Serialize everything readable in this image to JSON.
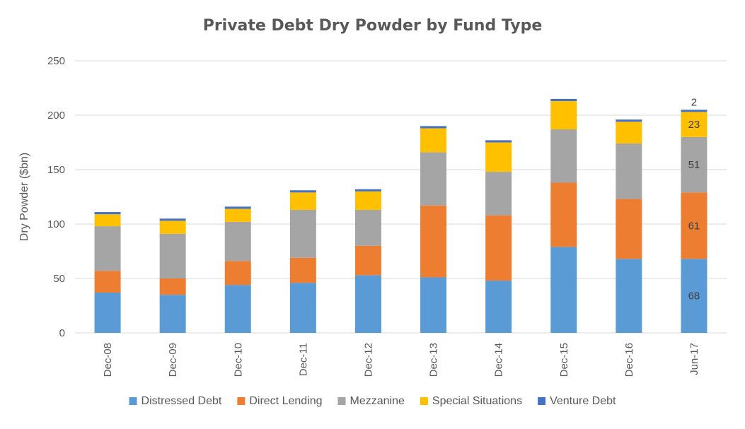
{
  "chart_data": {
    "type": "bar",
    "stacked": true,
    "title": "Private Debt Dry Powder by Fund Type",
    "xlabel": "",
    "ylabel": "Dry Powder ($bn)",
    "ylim": [
      0,
      250
    ],
    "yticks": [
      0,
      50,
      100,
      150,
      200,
      250
    ],
    "grid": true,
    "legend_position": "bottom",
    "categories": [
      "Dec-08",
      "Dec-09",
      "Dec-10",
      "Dec-11",
      "Dec-12",
      "Dec-13",
      "Dec-14",
      "Dec-15",
      "Dec-16",
      "Jun-17"
    ],
    "series": [
      {
        "name": "Distressed Debt",
        "color": "#5B9BD5",
        "values": [
          37,
          35,
          44,
          46,
          53,
          51,
          48,
          79,
          68,
          68
        ]
      },
      {
        "name": "Direct Lending",
        "color": "#ED7D31",
        "values": [
          20,
          15,
          22,
          23,
          27,
          66,
          60,
          59,
          55,
          61
        ]
      },
      {
        "name": "Mezzanine",
        "color": "#A5A5A5",
        "values": [
          41,
          41,
          36,
          44,
          33,
          49,
          40,
          49,
          51,
          51
        ]
      },
      {
        "name": "Special Situations",
        "color": "#FFC000",
        "values": [
          11,
          12,
          12,
          16,
          17,
          22,
          27,
          26,
          20,
          23
        ]
      },
      {
        "name": "Venture Debt",
        "color": "#4472C4",
        "values": [
          2,
          2,
          2,
          2,
          2,
          2,
          2,
          2,
          2,
          2
        ]
      }
    ],
    "data_labels": [
      {
        "category": "Jun-17",
        "series": "Distressed Debt",
        "text": "68"
      },
      {
        "category": "Jun-17",
        "series": "Direct Lending",
        "text": "61"
      },
      {
        "category": "Jun-17",
        "series": "Mezzanine",
        "text": "51"
      },
      {
        "category": "Jun-17",
        "series": "Special Situations",
        "text": "23"
      },
      {
        "category": "Jun-17",
        "series": "Venture Debt",
        "text": "2"
      }
    ]
  }
}
